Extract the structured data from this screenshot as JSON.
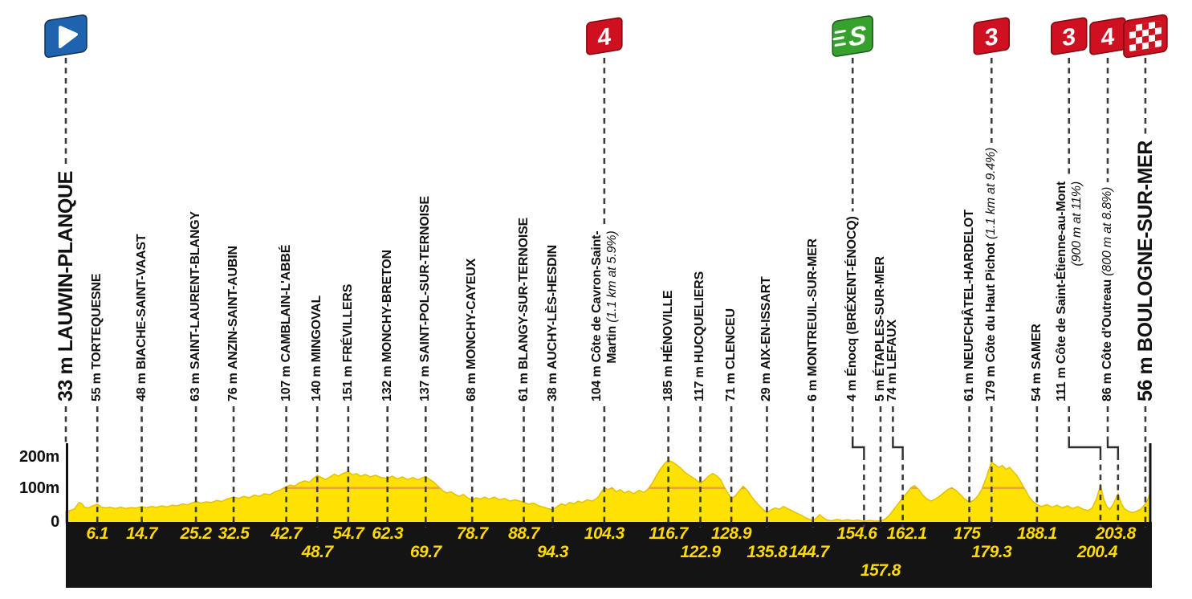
{
  "colors": {
    "profile_yellow": "#FFE103",
    "profile_edge": "#E3C200",
    "gridline_orange": "#ED9F3C",
    "band_black": "#141414",
    "distance_yellow": "#FFD900",
    "dash_gray": "#3C3C3C",
    "cat_red": "#CE1021",
    "sprint_green": "#36A22D",
    "start_blue": "#1E63AE",
    "text_black": "#111111"
  },
  "chart_data": {
    "type": "area",
    "x_unit": "km",
    "y_unit": "m",
    "x_range_km": [
      0,
      210
    ],
    "y_range_m": [
      0,
      238
    ],
    "grid": "100m reference line inside profile only",
    "y_axis": {
      "t200": "200m",
      "t100": "100m",
      "t0": "0"
    },
    "marker_glyphs": {
      "cat4": "4",
      "cat3": "3",
      "sprint": "S"
    },
    "waypoints": [
      {
        "km": 0,
        "elev": "33 m",
        "name": "LAUWIN-PLANQUE",
        "kind": "start",
        "marker": "start"
      },
      {
        "km": 6.1,
        "elev": "55 m",
        "name": "TORTEQUESNE",
        "kind": "town",
        "dist": "6.1",
        "dist_row": 1
      },
      {
        "km": 14.7,
        "elev": "48 m",
        "name": "BIACHE-SAINT-VAAST",
        "kind": "town",
        "dist": "14.7",
        "dist_row": 1
      },
      {
        "km": 25.2,
        "elev": "63 m",
        "name": "SAINT-LAURENT-BLANGY",
        "kind": "town",
        "dist": "25.2",
        "dist_row": 1
      },
      {
        "km": 32.5,
        "elev": "76 m",
        "name": "ANZIN-SAINT-AUBIN",
        "kind": "town",
        "dist": "32.5",
        "dist_row": 1
      },
      {
        "km": 42.7,
        "elev": "107 m",
        "name": "CAMBLAIN-L'ABBÉ",
        "kind": "town",
        "dist": "42.7",
        "dist_row": 1
      },
      {
        "km": 48.7,
        "elev": "140 m",
        "name": "MINGOVAL",
        "kind": "town",
        "dist": "48.7",
        "dist_row": 2
      },
      {
        "km": 54.7,
        "elev": "151 m",
        "name": "FRÉVILLERS",
        "kind": "town",
        "dist": "54.7",
        "dist_row": 1
      },
      {
        "km": 62.3,
        "elev": "132 m",
        "name": "MONCHY-BRETON",
        "kind": "town",
        "dist": "62.3",
        "dist_row": 1
      },
      {
        "km": 69.7,
        "elev": "137 m",
        "name": "SAINT-POL-SUR-TERNOISE",
        "kind": "town",
        "dist": "69.7",
        "dist_row": 2
      },
      {
        "km": 78.7,
        "elev": "68 m",
        "name": "MONCHY-CAYEUX",
        "kind": "town",
        "dist": "78.7",
        "dist_row": 1
      },
      {
        "km": 88.7,
        "elev": "61 m",
        "name": "BLANGY-SUR-TERNOISE",
        "kind": "town",
        "dist": "88.7",
        "dist_row": 1
      },
      {
        "km": 94.3,
        "elev": "38 m",
        "name": "AUCHY-LÈS-HESDIN",
        "kind": "town",
        "dist": "94.3",
        "dist_row": 2
      },
      {
        "km": 104.3,
        "elev": "104 m",
        "name": "Côte de Cavron-Saint-",
        "kind": "climb",
        "marker": "cat4",
        "line2": {
          "name": "Martin ",
          "gradient": "(1.1 km at 5.9%)"
        },
        "dist": "104.3",
        "dist_row": 1
      },
      {
        "km": 116.7,
        "elev": "185 m",
        "name": "HÉNOVILLE",
        "kind": "town",
        "dist": "116.7",
        "dist_row": 1
      },
      {
        "km": 122.9,
        "elev": "117 m",
        "name": "HUCQUELIERS",
        "kind": "town",
        "dist": "122.9",
        "dist_row": 2
      },
      {
        "km": 128.9,
        "elev": "71 m",
        "name": "CLENCEU",
        "kind": "town",
        "dist": "128.9",
        "dist_row": 1
      },
      {
        "km": 135.8,
        "elev": "29 m",
        "name": "AIX-EN-ISSART",
        "kind": "town",
        "dist": "135.8",
        "dist_row": 2
      },
      {
        "km": 144.7,
        "elev": "6 m",
        "name": "MONTREUIL-SUR-MER",
        "kind": "town",
        "dist": "144.7",
        "dist_row": 2,
        "dist_dx": -5
      },
      {
        "km": 154.6,
        "label_km": 152.4,
        "elev": "4 m",
        "name": "Énocq ",
        "paren": "(BRÉXENT-ÉNOCQ)",
        "kind": "sprint",
        "marker": "sprint",
        "dist": "154.6",
        "dist_row": 1,
        "dist_dx": -9
      },
      {
        "km": 157.8,
        "elev": "5 m",
        "name": "ÉTAPLES-SUR-MER",
        "kind": "town",
        "dist": "157.8",
        "dist_row": 3
      },
      {
        "km": 162.1,
        "label_km": 160.2,
        "elev": "74 m",
        "name": "LEFAUX",
        "kind": "town",
        "dist": "162.1",
        "dist_row": 1,
        "dist_dx": 5
      },
      {
        "km": 175,
        "elev": "61 m",
        "name": "NEUFCHÂTEL-HARDELOT",
        "kind": "town",
        "dist": "175",
        "dist_row": 1,
        "dist_dx": -3
      },
      {
        "km": 179.3,
        "elev": "179 m",
        "name": "Côte du Haut Pichot ",
        "gradient": "(1.1 km at 9.4%)",
        "kind": "climb",
        "marker": "cat3",
        "dist": "179.3",
        "dist_row": 2
      },
      {
        "km": 188.1,
        "elev": "54 m",
        "name": "SAMER",
        "kind": "town",
        "dist": "188.1",
        "dist_row": 1
      },
      {
        "km": 200.4,
        "label_km": 194.3,
        "elev": "111 m",
        "name": "Côte de Saint-Étienne-au-Mont",
        "kind": "climb",
        "marker": "cat3",
        "line2": {
          "gradient": "(900 m at 11%)"
        },
        "dist": "200.4",
        "dist_row": 2,
        "dist_dx": -4
      },
      {
        "km": 203.8,
        "label_km": 201.8,
        "elev": "86 m",
        "name": "Côte d'Outreau ",
        "gradient": "(800 m at 8.8%)",
        "kind": "climb",
        "marker": "cat4",
        "dist": "203.8",
        "dist_row": 1,
        "dist_dx": -3
      },
      {
        "km": 209.1,
        "elev": "56 m",
        "name": "BOULOGNE-SUR-MER",
        "kind": "finish",
        "marker": "finish"
      }
    ],
    "profile": [
      [
        0,
        33
      ],
      [
        0.8,
        36
      ],
      [
        1.6,
        40
      ],
      [
        2.6,
        60
      ],
      [
        3.1,
        57
      ],
      [
        3.6,
        46
      ],
      [
        4.4,
        44
      ],
      [
        5.2,
        50
      ],
      [
        6.1,
        55
      ],
      [
        6.8,
        47
      ],
      [
        7.6,
        44
      ],
      [
        8.6,
        46
      ],
      [
        9.6,
        42
      ],
      [
        10.6,
        46
      ],
      [
        11.6,
        42
      ],
      [
        12.6,
        45
      ],
      [
        13.6,
        43
      ],
      [
        14.7,
        48
      ],
      [
        15.6,
        44
      ],
      [
        16.6,
        48
      ],
      [
        17.6,
        46
      ],
      [
        18.6,
        50
      ],
      [
        19.6,
        47
      ],
      [
        20.6,
        52
      ],
      [
        21.6,
        50
      ],
      [
        22.6,
        56
      ],
      [
        23.6,
        53
      ],
      [
        24.4,
        58
      ],
      [
        25.2,
        63
      ],
      [
        26.2,
        58
      ],
      [
        27.2,
        62
      ],
      [
        28.2,
        60
      ],
      [
        29.2,
        66
      ],
      [
        30.2,
        63
      ],
      [
        31.2,
        70
      ],
      [
        32.5,
        76
      ],
      [
        33.5,
        72
      ],
      [
        34.5,
        78
      ],
      [
        35.5,
        74
      ],
      [
        36.5,
        82
      ],
      [
        37.5,
        78
      ],
      [
        38.5,
        86
      ],
      [
        39.5,
        83
      ],
      [
        40.5,
        92
      ],
      [
        41.5,
        97
      ],
      [
        42.7,
        107
      ],
      [
        43.5,
        112
      ],
      [
        44.3,
        108
      ],
      [
        45.2,
        118
      ],
      [
        46.2,
        124
      ],
      [
        47.2,
        120
      ],
      [
        48,
        132
      ],
      [
        48.7,
        140
      ],
      [
        49.5,
        134
      ],
      [
        50.3,
        128
      ],
      [
        51.2,
        136
      ],
      [
        52,
        144
      ],
      [
        52.8,
        138
      ],
      [
        53.6,
        146
      ],
      [
        54.7,
        151
      ],
      [
        55.5,
        142
      ],
      [
        56.3,
        146
      ],
      [
        57.1,
        138
      ],
      [
        58,
        143
      ],
      [
        59,
        136
      ],
      [
        60,
        141
      ],
      [
        61,
        134
      ],
      [
        62.3,
        132
      ],
      [
        63.2,
        138
      ],
      [
        64.2,
        130
      ],
      [
        65.2,
        136
      ],
      [
        66.2,
        128
      ],
      [
        67.2,
        134
      ],
      [
        68.2,
        127
      ],
      [
        69,
        133
      ],
      [
        69.7,
        137
      ],
      [
        70.5,
        128
      ],
      [
        71.3,
        120
      ],
      [
        72.1,
        108
      ],
      [
        73,
        95
      ],
      [
        73.8,
        88
      ],
      [
        74.6,
        92
      ],
      [
        75.4,
        84
      ],
      [
        76.2,
        78
      ],
      [
        77,
        84
      ],
      [
        77.8,
        74
      ],
      [
        78.7,
        68
      ],
      [
        79.5,
        74
      ],
      [
        80.3,
        70
      ],
      [
        81.1,
        76
      ],
      [
        82,
        70
      ],
      [
        83,
        76
      ],
      [
        84,
        68
      ],
      [
        85,
        72
      ],
      [
        86,
        64
      ],
      [
        87,
        68
      ],
      [
        88.7,
        61
      ],
      [
        89.6,
        55
      ],
      [
        90.6,
        58
      ],
      [
        91.6,
        50
      ],
      [
        92.6,
        46
      ],
      [
        93.4,
        42
      ],
      [
        94.3,
        38
      ],
      [
        95.2,
        48
      ],
      [
        96,
        56
      ],
      [
        96.8,
        52
      ],
      [
        97.6,
        60
      ],
      [
        98.4,
        56
      ],
      [
        99.2,
        64
      ],
      [
        100,
        60
      ],
      [
        101,
        68
      ],
      [
        102,
        64
      ],
      [
        103,
        74
      ],
      [
        103.6,
        88
      ],
      [
        104.3,
        104
      ],
      [
        105,
        98
      ],
      [
        105.8,
        104
      ],
      [
        106.6,
        92
      ],
      [
        107.4,
        98
      ],
      [
        108.2,
        88
      ],
      [
        109,
        94
      ],
      [
        110,
        86
      ],
      [
        111,
        96
      ],
      [
        112,
        90
      ],
      [
        112.8,
        100
      ],
      [
        113.6,
        118
      ],
      [
        114.4,
        140
      ],
      [
        115.2,
        160
      ],
      [
        116,
        176
      ],
      [
        116.7,
        185
      ],
      [
        117.5,
        180
      ],
      [
        118.3,
        172
      ],
      [
        119.1,
        162
      ],
      [
        120,
        148
      ],
      [
        121,
        138
      ],
      [
        122,
        128
      ],
      [
        122.9,
        117
      ],
      [
        123.7,
        126
      ],
      [
        124.5,
        138
      ],
      [
        125.3,
        146
      ],
      [
        126,
        140
      ],
      [
        126.8,
        128
      ],
      [
        127.6,
        104
      ],
      [
        128.3,
        86
      ],
      [
        128.9,
        71
      ],
      [
        129.7,
        80
      ],
      [
        130.5,
        96
      ],
      [
        131.2,
        108
      ],
      [
        132,
        96
      ],
      [
        132.8,
        78
      ],
      [
        133.6,
        62
      ],
      [
        134.6,
        46
      ],
      [
        135.8,
        29
      ],
      [
        136.6,
        38
      ],
      [
        137.4,
        44
      ],
      [
        138.2,
        40
      ],
      [
        139,
        48
      ],
      [
        139.8,
        42
      ],
      [
        140.6,
        36
      ],
      [
        141.4,
        30
      ],
      [
        142.2,
        24
      ],
      [
        143.4,
        14
      ],
      [
        144.7,
        6
      ],
      [
        145.4,
        14
      ],
      [
        146,
        24
      ],
      [
        146.6,
        16
      ],
      [
        147.4,
        8
      ],
      [
        148.4,
        6
      ],
      [
        149.4,
        10
      ],
      [
        150.4,
        6
      ],
      [
        151.4,
        9
      ],
      [
        152.4,
        6
      ],
      [
        153.4,
        8
      ],
      [
        154.6,
        4
      ],
      [
        155.6,
        7
      ],
      [
        156.6,
        5
      ],
      [
        157.8,
        5
      ],
      [
        158.6,
        10
      ],
      [
        159.4,
        20
      ],
      [
        160.2,
        36
      ],
      [
        161,
        52
      ],
      [
        162.1,
        74
      ],
      [
        162.9,
        88
      ],
      [
        163.7,
        104
      ],
      [
        164.4,
        110
      ],
      [
        165.2,
        98
      ],
      [
        166,
        82
      ],
      [
        166.8,
        70
      ],
      [
        167.6,
        64
      ],
      [
        168.4,
        70
      ],
      [
        169.2,
        78
      ],
      [
        170,
        88
      ],
      [
        170.8,
        98
      ],
      [
        171.6,
        104
      ],
      [
        172.4,
        96
      ],
      [
        173.2,
        84
      ],
      [
        174,
        72
      ],
      [
        175,
        61
      ],
      [
        175.8,
        66
      ],
      [
        176.6,
        78
      ],
      [
        177.4,
        98
      ],
      [
        178.2,
        130
      ],
      [
        178.8,
        158
      ],
      [
        179.3,
        179
      ],
      [
        180,
        172
      ],
      [
        180.7,
        164
      ],
      [
        181.4,
        170
      ],
      [
        182.1,
        158
      ],
      [
        182.8,
        164
      ],
      [
        183.5,
        152
      ],
      [
        184.2,
        140
      ],
      [
        185,
        120
      ],
      [
        185.8,
        98
      ],
      [
        186.6,
        76
      ],
      [
        187.4,
        62
      ],
      [
        188.1,
        54
      ],
      [
        189,
        48
      ],
      [
        190,
        54
      ],
      [
        191,
        46
      ],
      [
        192,
        52
      ],
      [
        193,
        44
      ],
      [
        194,
        50
      ],
      [
        195,
        42
      ],
      [
        196,
        48
      ],
      [
        197,
        40
      ],
      [
        198,
        36
      ],
      [
        198.8,
        44
      ],
      [
        199.6,
        70
      ],
      [
        200.4,
        111
      ],
      [
        201,
        72
      ],
      [
        201.6,
        48
      ],
      [
        202.2,
        40
      ],
      [
        202.9,
        56
      ],
      [
        203.8,
        86
      ],
      [
        204.4,
        58
      ],
      [
        205,
        42
      ],
      [
        205.8,
        34
      ],
      [
        206.6,
        30
      ],
      [
        207.4,
        34
      ],
      [
        208.2,
        40
      ],
      [
        209.1,
        56
      ],
      [
        209.6,
        70
      ],
      [
        210,
        88
      ]
    ]
  }
}
